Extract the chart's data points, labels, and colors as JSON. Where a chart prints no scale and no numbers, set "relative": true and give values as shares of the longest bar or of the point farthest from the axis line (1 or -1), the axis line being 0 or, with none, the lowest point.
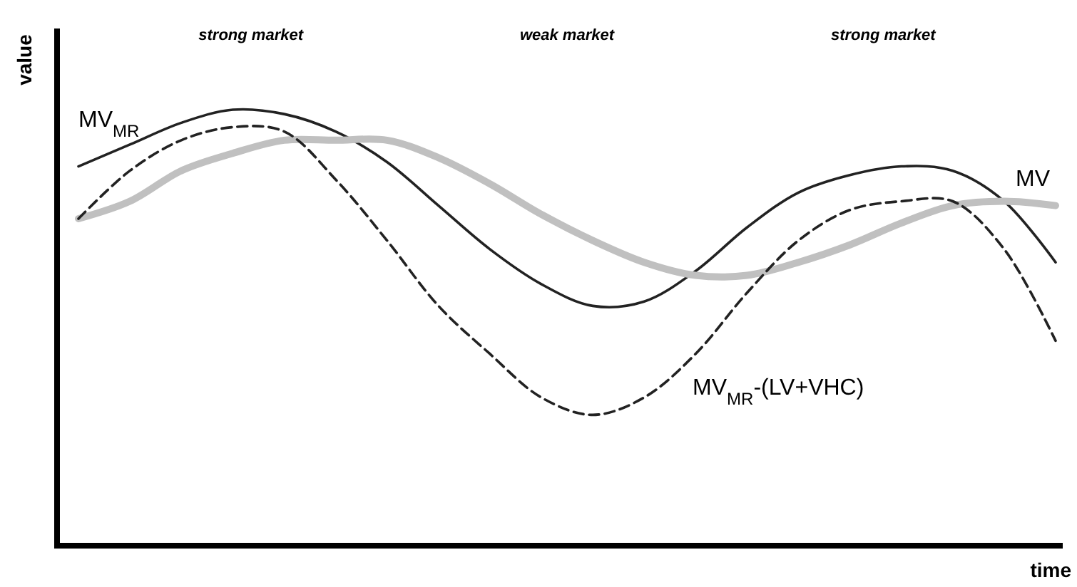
{
  "chart_data": {
    "type": "line",
    "relative": true,
    "xlabel": "time",
    "ylabel": "value",
    "annotations": [
      "strong market",
      "weak market",
      "strong market"
    ],
    "categories": [
      null,
      null,
      null,
      null,
      null,
      null,
      null,
      null,
      null,
      null,
      null,
      null,
      null,
      null,
      null,
      null,
      null,
      null,
      null,
      null
    ],
    "legend": false,
    "series": [
      {
        "name": "MV$_{MR}$",
        "color": "#222222",
        "line_style": "solid",
        "values": [
          0.87,
          0.92,
          0.97,
          1.0,
          0.99,
          0.95,
          0.88,
          0.78,
          0.68,
          0.6,
          0.55,
          0.56,
          0.63,
          0.73,
          0.81,
          0.85,
          0.87,
          0.86,
          0.79,
          0.65
        ]
      },
      {
        "name": "MV",
        "color": "#c0c0c0",
        "line_style": "solid",
        "values": [
          0.75,
          0.79,
          0.86,
          0.9,
          0.93,
          0.93,
          0.93,
          0.89,
          0.83,
          0.76,
          0.7,
          0.65,
          0.62,
          0.62,
          0.65,
          0.69,
          0.74,
          0.78,
          0.79,
          0.78
        ]
      },
      {
        "name": "MV$_{MR}$-(LV+VHC)",
        "color": "#222222",
        "line_style": "dashed",
        "values": [
          0.75,
          0.86,
          0.93,
          0.96,
          0.95,
          0.84,
          0.7,
          0.55,
          0.44,
          0.34,
          0.3,
          0.34,
          0.44,
          0.58,
          0.7,
          0.77,
          0.79,
          0.79,
          0.68,
          0.47
        ]
      }
    ]
  }
}
